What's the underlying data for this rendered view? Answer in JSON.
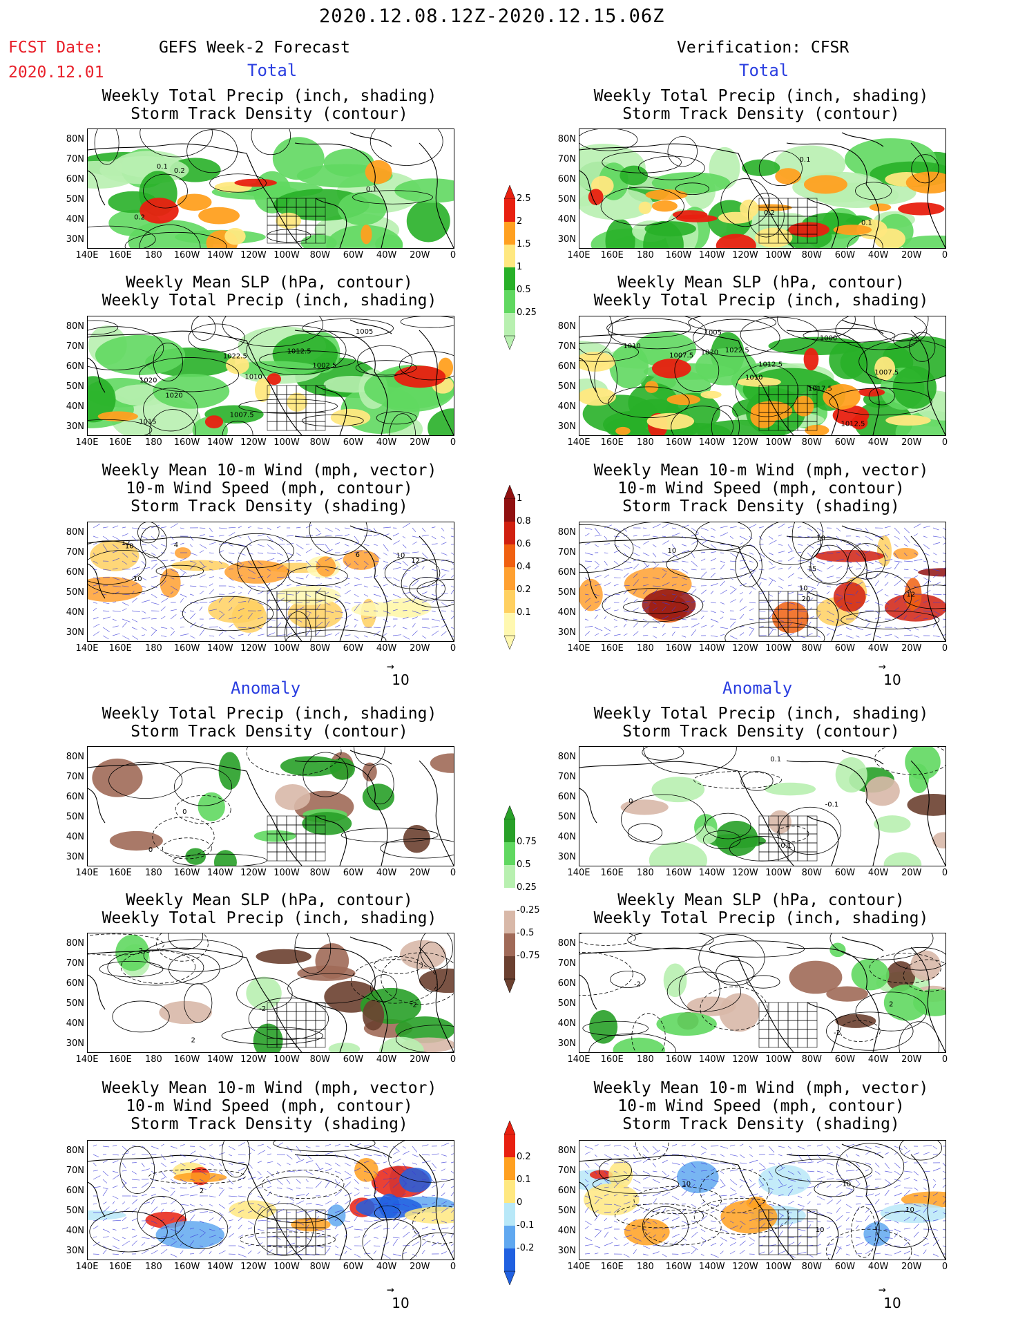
{
  "header": {
    "period": "2020.12.08.12Z-2020.12.15.06Z",
    "fcst_label": "FCST Date:",
    "fcst_date": "2020.12.01",
    "left_title": "GEFS Week-2 Forecast",
    "right_title": "Verification: CFSR",
    "total_label": "Total",
    "anomaly_label": "Anomaly"
  },
  "panel_titles": {
    "precip_storm": [
      "Weekly Total Precip (inch, shading)",
      "Storm Track Density (contour)"
    ],
    "slp_precip": [
      "Weekly Mean SLP (hPa, contour)",
      "Weekly Total Precip (inch, shading)"
    ],
    "wind_storm": [
      "Weekly Mean 10-m Wind (mph, vector)",
      "10-m Wind Speed (mph, contour)",
      "Storm Track Density (shading)"
    ]
  },
  "axes": {
    "lat_labels": [
      "80N",
      "70N",
      "60N",
      "50N",
      "40N",
      "30N"
    ],
    "lon_labels": [
      "140E",
      "160E",
      "180",
      "160W",
      "140W",
      "120W",
      "100W",
      "80W",
      "60W",
      "40W",
      "20W",
      "0"
    ]
  },
  "vector_ref": "10",
  "colorbars": {
    "precip_total": {
      "labels": [
        "0.25",
        "0.5",
        "1",
        "1.5",
        "2",
        "2.5"
      ],
      "colors": [
        "#b8f0b0",
        "#60d860",
        "#28b028",
        "#ffe880",
        "#ffa020",
        "#e82010"
      ]
    },
    "storm_total": {
      "labels": [
        "0.1",
        "0.2",
        "0.4",
        "0.6",
        "0.8",
        "1"
      ],
      "colors": [
        "#fff8b0",
        "#ffd060",
        "#ffa030",
        "#f06010",
        "#d02010",
        "#901010"
      ]
    },
    "precip_anom": {
      "labels": [
        "-0.75",
        "-0.5",
        "-0.25",
        "0.25",
        "0.5",
        "0.75"
      ],
      "colors": [
        "#6b4030",
        "#a06a58",
        "#d8b8a8",
        "#ffffff",
        "#b8f0b0",
        "#60d860",
        "#28a028"
      ]
    },
    "storm_anom": {
      "labels": [
        "-0.2",
        "-0.1",
        "0",
        "0.1",
        "0.2"
      ],
      "colors": [
        "#2060e0",
        "#60a8f0",
        "#b8e8f8",
        "#ffe880",
        "#ffa020",
        "#e82010"
      ]
    }
  },
  "contour_labels": {
    "l1": [
      "0.1",
      "0.2",
      "0.1",
      "0.2"
    ],
    "r1": [
      "0.1",
      "0.2",
      "0.1"
    ],
    "l2": [
      "1020",
      "1010",
      "1007.5",
      "1002.5",
      "1005",
      "1020",
      "1015",
      "1012.5",
      "1022.5"
    ],
    "r2": [
      "1017.5",
      "1007.5",
      "1022.5",
      "1007.5",
      "1012.5",
      "1000",
      "1005",
      "1010",
      "1012.5",
      "1020",
      "1010"
    ],
    "l3": [
      "4",
      "6",
      "12",
      "10",
      "10",
      "12",
      "10"
    ],
    "r3": [
      "10",
      "10",
      "12",
      "15",
      "10",
      "20"
    ],
    "l4": [
      "0",
      "0"
    ],
    "r4": [
      "-0.1",
      "-0.1",
      "0.1",
      "0"
    ],
    "l5": [
      "2",
      "-2",
      "2",
      "-2"
    ],
    "r5": [
      "-2",
      "2",
      "-2"
    ],
    "l6": [
      "2"
    ],
    "r6": [
      "10",
      "10",
      "10",
      "10"
    ]
  }
}
